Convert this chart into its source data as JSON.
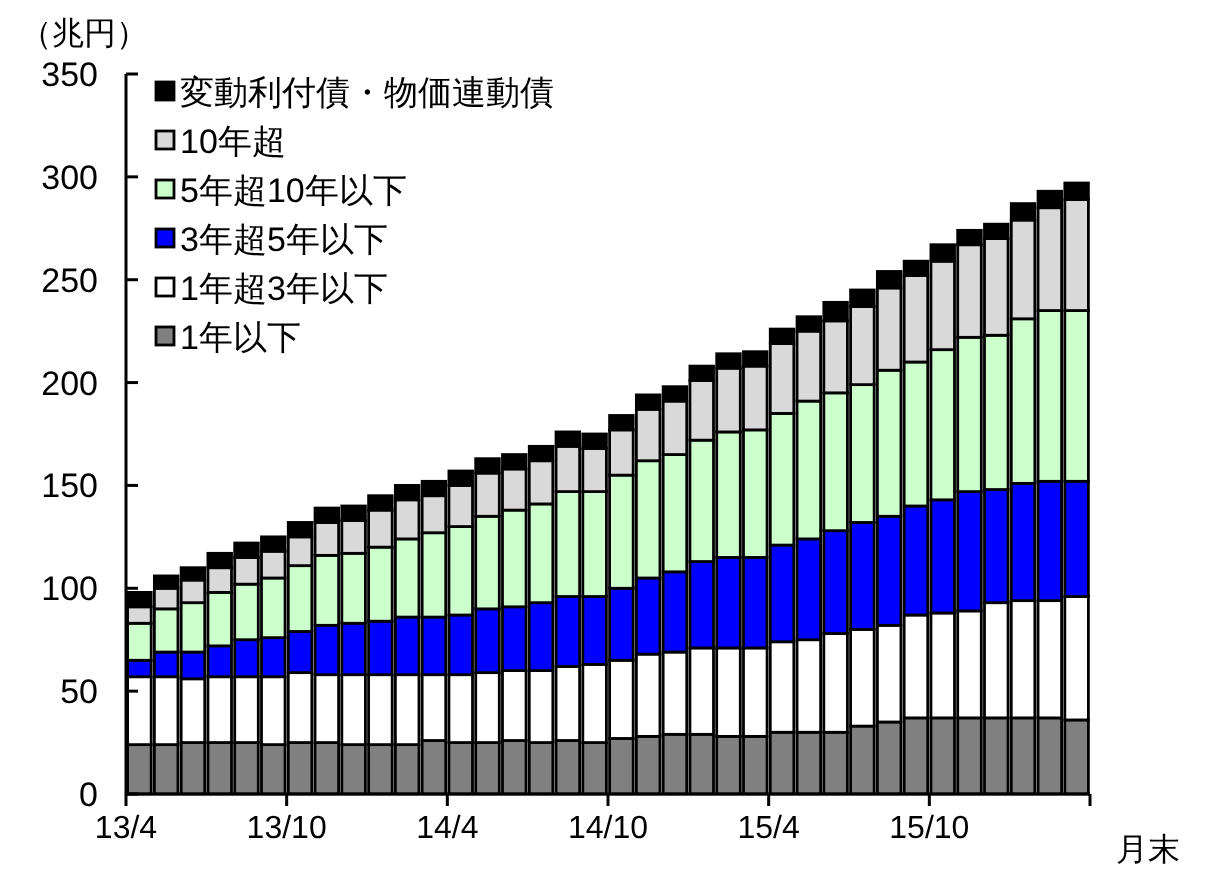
{
  "chart_data": {
    "type": "bar",
    "stacked": true,
    "ylabel": "（兆円）",
    "xlabel": "月末",
    "categories": [
      "13/4",
      null,
      null,
      null,
      null,
      null,
      "13/10",
      null,
      null,
      null,
      null,
      null,
      "14/4",
      null,
      null,
      null,
      null,
      null,
      "14/10",
      null,
      null,
      null,
      null,
      null,
      "15/4",
      null,
      null,
      null,
      null,
      null,
      "15/10",
      null,
      null,
      null,
      null,
      null
    ],
    "series": [
      {
        "name": "1年以下",
        "color": "#808080",
        "values": [
          24,
          24,
          25,
          25,
          25,
          24,
          25,
          25,
          24,
          24,
          24,
          26,
          25,
          25,
          26,
          25,
          26,
          25,
          27,
          28,
          29,
          29,
          28,
          28,
          30,
          30,
          30,
          33,
          35,
          37,
          37,
          37,
          37,
          37,
          37,
          36
        ]
      },
      {
        "name": "1年超3年以下",
        "color": "#ffffff",
        "values": [
          33,
          33,
          31,
          32,
          32,
          33,
          34,
          33,
          34,
          34,
          34,
          32,
          33,
          34,
          34,
          35,
          36,
          38,
          38,
          40,
          40,
          42,
          43,
          43,
          44,
          45,
          48,
          47,
          47,
          50,
          51,
          52,
          56,
          57,
          57,
          60
        ]
      },
      {
        "name": "3年超5年以下",
        "color": "#0000ff",
        "values": [
          8,
          12,
          13,
          15,
          18,
          19,
          20,
          24,
          25,
          26,
          28,
          28,
          29,
          31,
          31,
          33,
          34,
          33,
          35,
          37,
          39,
          42,
          44,
          44,
          47,
          49,
          50,
          52,
          53,
          53,
          55,
          58,
          55,
          57,
          58,
          56
        ]
      },
      {
        "name": "5年超10年以下",
        "color": "#ccffcc",
        "values": [
          18,
          21,
          24,
          26,
          27,
          29,
          32,
          34,
          34,
          36,
          38,
          41,
          43,
          45,
          47,
          48,
          51,
          51,
          55,
          57,
          57,
          59,
          61,
          62,
          64,
          67,
          67,
          67,
          71,
          70,
          73,
          75,
          75,
          80,
          83,
          83
        ]
      },
      {
        "name": "10年超",
        "color": "#d9d9d9",
        "values": [
          8,
          10,
          11,
          12,
          13,
          13,
          14,
          16,
          16,
          18,
          19,
          18,
          20,
          21,
          20,
          21,
          22,
          21,
          22,
          25,
          26,
          29,
          31,
          31,
          34,
          34,
          35,
          38,
          40,
          42,
          43,
          45,
          47,
          48,
          50,
          54
        ]
      },
      {
        "name": "変動利付債・物価連動債",
        "color": "#000000",
        "values": [
          7,
          6,
          6,
          7,
          7,
          7,
          7,
          7,
          7,
          7,
          7,
          7,
          7,
          7,
          7,
          7,
          7,
          7,
          7,
          7,
          7,
          7,
          7,
          7,
          7,
          7,
          9,
          8,
          8,
          7,
          8,
          7,
          7,
          8,
          8,
          8
        ]
      }
    ],
    "ylim": [
      0,
      350
    ],
    "yticks": [
      0,
      50,
      100,
      150,
      200,
      250,
      300,
      350
    ],
    "legend": "top left"
  }
}
